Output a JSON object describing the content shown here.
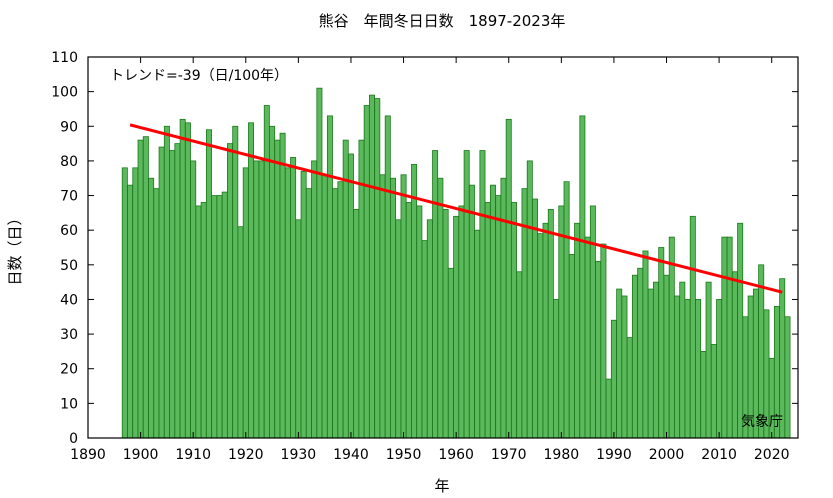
{
  "chart_data": {
    "type": "bar",
    "title": "熊谷　年間冬日日数　1897-2023年",
    "xlabel": "年",
    "ylabel": "日数（日）",
    "trend_label": "トレンド=-39（日/100年）",
    "source_label": "気象庁",
    "xlim": [
      1890,
      2025
    ],
    "ylim": [
      0,
      110
    ],
    "xticks": [
      1890,
      1900,
      1910,
      1920,
      1930,
      1940,
      1950,
      1960,
      1970,
      1980,
      1990,
      2000,
      2010,
      2020
    ],
    "yticks": [
      0,
      10,
      20,
      30,
      40,
      50,
      60,
      70,
      80,
      90,
      100,
      110
    ],
    "grid": false,
    "x": [
      1897,
      1898,
      1899,
      1900,
      1901,
      1902,
      1903,
      1904,
      1905,
      1906,
      1907,
      1908,
      1909,
      1910,
      1911,
      1912,
      1913,
      1914,
      1915,
      1916,
      1917,
      1918,
      1919,
      1920,
      1921,
      1922,
      1923,
      1924,
      1925,
      1926,
      1927,
      1928,
      1929,
      1930,
      1931,
      1932,
      1933,
      1934,
      1935,
      1936,
      1937,
      1938,
      1939,
      1940,
      1941,
      1942,
      1943,
      1944,
      1945,
      1946,
      1947,
      1948,
      1949,
      1950,
      1951,
      1952,
      1953,
      1954,
      1955,
      1956,
      1957,
      1958,
      1959,
      1960,
      1961,
      1962,
      1963,
      1964,
      1965,
      1966,
      1967,
      1968,
      1969,
      1970,
      1971,
      1972,
      1973,
      1974,
      1975,
      1976,
      1977,
      1978,
      1979,
      1980,
      1981,
      1982,
      1983,
      1984,
      1985,
      1986,
      1987,
      1988,
      1989,
      1990,
      1991,
      1992,
      1993,
      1994,
      1995,
      1996,
      1997,
      1998,
      1999,
      2000,
      2001,
      2002,
      2003,
      2004,
      2005,
      2006,
      2007,
      2008,
      2009,
      2010,
      2011,
      2012,
      2013,
      2014,
      2015,
      2016,
      2017,
      2018,
      2019,
      2020,
      2021,
      2022,
      2023
    ],
    "values": [
      78,
      73,
      78,
      86,
      87,
      75,
      72,
      84,
      90,
      83,
      85,
      92,
      91,
      80,
      67,
      68,
      89,
      70,
      70,
      71,
      85,
      90,
      61,
      78,
      91,
      80,
      80,
      96,
      90,
      86,
      88,
      78,
      81,
      63,
      77,
      72,
      80,
      101,
      76,
      93,
      72,
      74,
      86,
      82,
      66,
      86,
      96,
      99,
      98,
      76,
      93,
      75,
      63,
      76,
      68,
      79,
      67,
      57,
      63,
      83,
      75,
      66,
      49,
      64,
      67,
      83,
      73,
      60,
      83,
      68,
      73,
      70,
      75,
      92,
      68,
      48,
      72,
      80,
      69,
      59,
      62,
      66,
      40,
      67,
      74,
      53,
      62,
      93,
      58,
      67,
      51,
      56,
      17,
      34,
      43,
      41,
      29,
      47,
      49,
      54,
      43,
      45,
      55,
      47,
      58,
      41,
      45,
      40,
      64,
      40,
      25,
      45,
      27,
      40,
      58,
      58,
      48,
      62,
      35,
      41,
      43,
      50,
      37,
      23,
      38,
      46,
      35
    ],
    "trend": {
      "x": [
        1898,
        2022
      ],
      "y": [
        90.4,
        42.1
      ],
      "color": "#ff0000"
    },
    "bar_color": "#5cb85c",
    "bar_edge_color": "#1a7a1a"
  }
}
